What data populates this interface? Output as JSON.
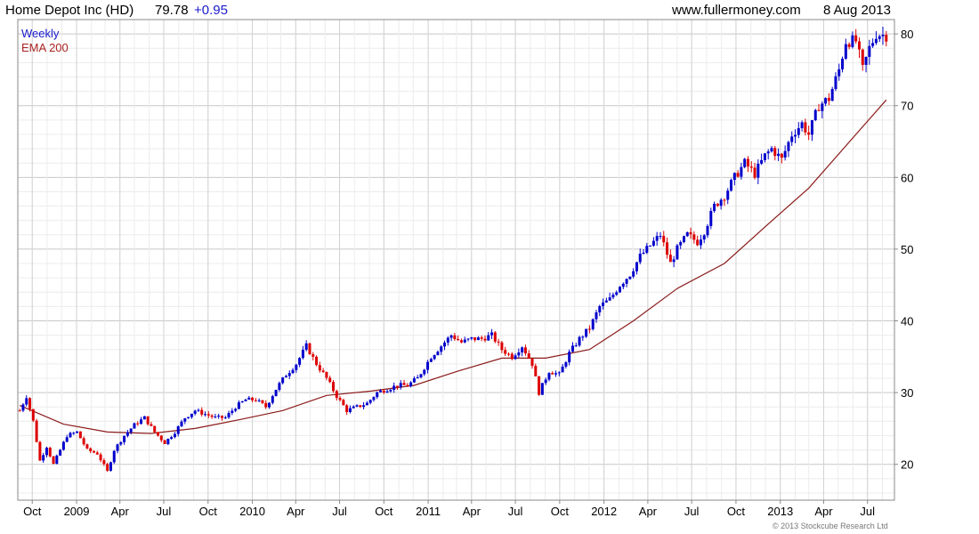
{
  "header": {
    "symbol": "Home Depot Inc (HD)",
    "last": "79.78",
    "change": "+0.95",
    "source": "www.fullermoney.com",
    "date": "8 Aug 2013"
  },
  "legend": {
    "timeframe": "Weekly",
    "indicator": "EMA 200"
  },
  "footer": {
    "copyright": "© 2013 Stockcube Research Ltd"
  },
  "colors": {
    "up": "#0000cc",
    "down": "#dd0000",
    "ema": "#8b1a1a",
    "grid": "#d8d8d8",
    "frame": "#888888",
    "legend_timeframe": "#1a1acc",
    "legend_indicator": "#aa2222"
  },
  "chart_data": {
    "type": "candlestick",
    "title": "",
    "xlabel": "",
    "ylabel": "",
    "x_range": [
      "2008-09-01",
      "2013-08-26"
    ],
    "ylim": [
      15,
      82
    ],
    "y_ticks": [
      20,
      30,
      40,
      50,
      60,
      70,
      80
    ],
    "x_ticks": [
      {
        "label": "Oct",
        "date": "2008-10-01"
      },
      {
        "label": "2009",
        "date": "2009-01-01"
      },
      {
        "label": "Apr",
        "date": "2009-04-01"
      },
      {
        "label": "Jul",
        "date": "2009-07-01"
      },
      {
        "label": "Oct",
        "date": "2009-10-01"
      },
      {
        "label": "2010",
        "date": "2010-01-01"
      },
      {
        "label": "Apr",
        "date": "2010-04-01"
      },
      {
        "label": "Jul",
        "date": "2010-07-01"
      },
      {
        "label": "Oct",
        "date": "2010-10-01"
      },
      {
        "label": "2011",
        "date": "2011-01-01"
      },
      {
        "label": "Apr",
        "date": "2011-04-01"
      },
      {
        "label": "Jul",
        "date": "2011-07-01"
      },
      {
        "label": "Oct",
        "date": "2011-10-01"
      },
      {
        "label": "2012",
        "date": "2012-01-01"
      },
      {
        "label": "Apr",
        "date": "2012-04-01"
      },
      {
        "label": "Jul",
        "date": "2012-07-01"
      },
      {
        "label": "Oct",
        "date": "2012-10-01"
      },
      {
        "label": "2013",
        "date": "2013-01-01"
      },
      {
        "label": "Apr",
        "date": "2013-04-01"
      },
      {
        "label": "Jul",
        "date": "2013-07-01"
      }
    ],
    "grid": true,
    "frequency": "weekly",
    "price_anchors": [
      [
        "2008-09-05",
        27.5
      ],
      [
        "2008-09-19",
        29.5
      ],
      [
        "2008-10-03",
        26.0
      ],
      [
        "2008-10-17",
        20.5
      ],
      [
        "2008-10-31",
        22.5
      ],
      [
        "2008-11-14",
        20.0
      ],
      [
        "2008-11-28",
        22.0
      ],
      [
        "2008-12-12",
        24.0
      ],
      [
        "2009-01-02",
        24.5
      ],
      [
        "2009-01-23",
        22.0
      ],
      [
        "2009-02-13",
        21.5
      ],
      [
        "2009-03-06",
        19.0
      ],
      [
        "2009-03-20",
        22.0
      ],
      [
        "2009-04-10",
        24.0
      ],
      [
        "2009-05-01",
        25.5
      ],
      [
        "2009-05-22",
        26.5
      ],
      [
        "2009-06-12",
        24.5
      ],
      [
        "2009-07-03",
        23.0
      ],
      [
        "2009-07-24",
        24.5
      ],
      [
        "2009-08-14",
        26.5
      ],
      [
        "2009-09-04",
        27.5
      ],
      [
        "2009-09-25",
        27.0
      ],
      [
        "2009-10-16",
        26.5
      ],
      [
        "2009-11-06",
        26.5
      ],
      [
        "2009-11-27",
        28.0
      ],
      [
        "2009-12-18",
        29.0
      ],
      [
        "2010-01-08",
        29.0
      ],
      [
        "2010-01-29",
        28.0
      ],
      [
        "2010-02-19",
        30.5
      ],
      [
        "2010-03-12",
        32.5
      ],
      [
        "2010-04-02",
        34.0
      ],
      [
        "2010-04-23",
        36.5
      ],
      [
        "2010-05-14",
        34.0
      ],
      [
        "2010-06-04",
        32.0
      ],
      [
        "2010-06-25",
        29.5
      ],
      [
        "2010-07-16",
        27.5
      ],
      [
        "2010-08-06",
        28.0
      ],
      [
        "2010-08-27",
        28.5
      ],
      [
        "2010-09-17",
        30.0
      ],
      [
        "2010-10-08",
        30.5
      ],
      [
        "2010-10-29",
        31.0
      ],
      [
        "2010-11-19",
        31.0
      ],
      [
        "2010-12-10",
        32.0
      ],
      [
        "2011-01-07",
        35.0
      ],
      [
        "2011-01-28",
        36.5
      ],
      [
        "2011-02-18",
        38.0
      ],
      [
        "2011-03-11",
        37.0
      ],
      [
        "2011-04-01",
        37.5
      ],
      [
        "2011-04-22",
        37.5
      ],
      [
        "2011-05-13",
        38.0
      ],
      [
        "2011-06-03",
        36.0
      ],
      [
        "2011-06-24",
        35.0
      ],
      [
        "2011-07-15",
        36.5
      ],
      [
        "2011-08-05",
        34.0
      ],
      [
        "2011-08-19",
        30.0
      ],
      [
        "2011-09-09",
        33.0
      ],
      [
        "2011-09-30",
        32.5
      ],
      [
        "2011-10-21",
        35.5
      ],
      [
        "2011-11-11",
        37.5
      ],
      [
        "2011-12-02",
        39.0
      ],
      [
        "2011-12-23",
        42.0
      ],
      [
        "2012-01-13",
        43.0
      ],
      [
        "2012-02-03",
        45.0
      ],
      [
        "2012-02-24",
        46.5
      ],
      [
        "2012-03-16",
        49.0
      ],
      [
        "2012-04-06",
        50.5
      ],
      [
        "2012-04-27",
        52.0
      ],
      [
        "2012-05-18",
        48.0
      ],
      [
        "2012-06-01",
        50.0
      ],
      [
        "2012-06-22",
        52.0
      ],
      [
        "2012-07-13",
        51.0
      ],
      [
        "2012-07-27",
        52.5
      ],
      [
        "2012-08-17",
        56.0
      ],
      [
        "2012-09-07",
        57.5
      ],
      [
        "2012-09-28",
        60.0
      ],
      [
        "2012-10-19",
        62.0
      ],
      [
        "2012-11-09",
        60.5
      ],
      [
        "2012-11-30",
        63.0
      ],
      [
        "2012-12-14",
        64.0
      ],
      [
        "2013-01-04",
        62.5
      ],
      [
        "2013-01-25",
        66.0
      ],
      [
        "2013-02-15",
        67.5
      ],
      [
        "2013-03-01",
        66.0
      ],
      [
        "2013-03-22",
        70.0
      ],
      [
        "2013-04-12",
        71.0
      ],
      [
        "2013-05-03",
        75.0
      ],
      [
        "2013-05-17",
        79.0
      ],
      [
        "2013-06-07",
        79.0
      ],
      [
        "2013-06-21",
        75.0
      ],
      [
        "2013-07-05",
        78.0
      ],
      [
        "2013-07-19",
        80.0
      ],
      [
        "2013-08-09",
        79.8
      ]
    ],
    "ema_200": [
      [
        "2008-09-05",
        28.2
      ],
      [
        "2008-12-05",
        25.6
      ],
      [
        "2009-03-06",
        24.5
      ],
      [
        "2009-06-05",
        24.3
      ],
      [
        "2009-09-04",
        25.0
      ],
      [
        "2009-12-04",
        26.2
      ],
      [
        "2010-03-05",
        27.5
      ],
      [
        "2010-06-04",
        29.6
      ],
      [
        "2010-09-03",
        30.2
      ],
      [
        "2010-12-03",
        31.0
      ],
      [
        "2011-03-04",
        33.0
      ],
      [
        "2011-06-03",
        34.8
      ],
      [
        "2011-09-02",
        34.8
      ],
      [
        "2011-12-02",
        36.0
      ],
      [
        "2012-03-02",
        40.0
      ],
      [
        "2012-06-01",
        44.5
      ],
      [
        "2012-09-07",
        48.0
      ],
      [
        "2012-12-07",
        53.5
      ],
      [
        "2013-03-01",
        58.5
      ],
      [
        "2013-06-07",
        66.0
      ],
      [
        "2013-08-09",
        70.8
      ]
    ],
    "series": [
      {
        "name": "Weekly",
        "kind": "candlestick"
      },
      {
        "name": "EMA 200",
        "kind": "line"
      }
    ]
  }
}
